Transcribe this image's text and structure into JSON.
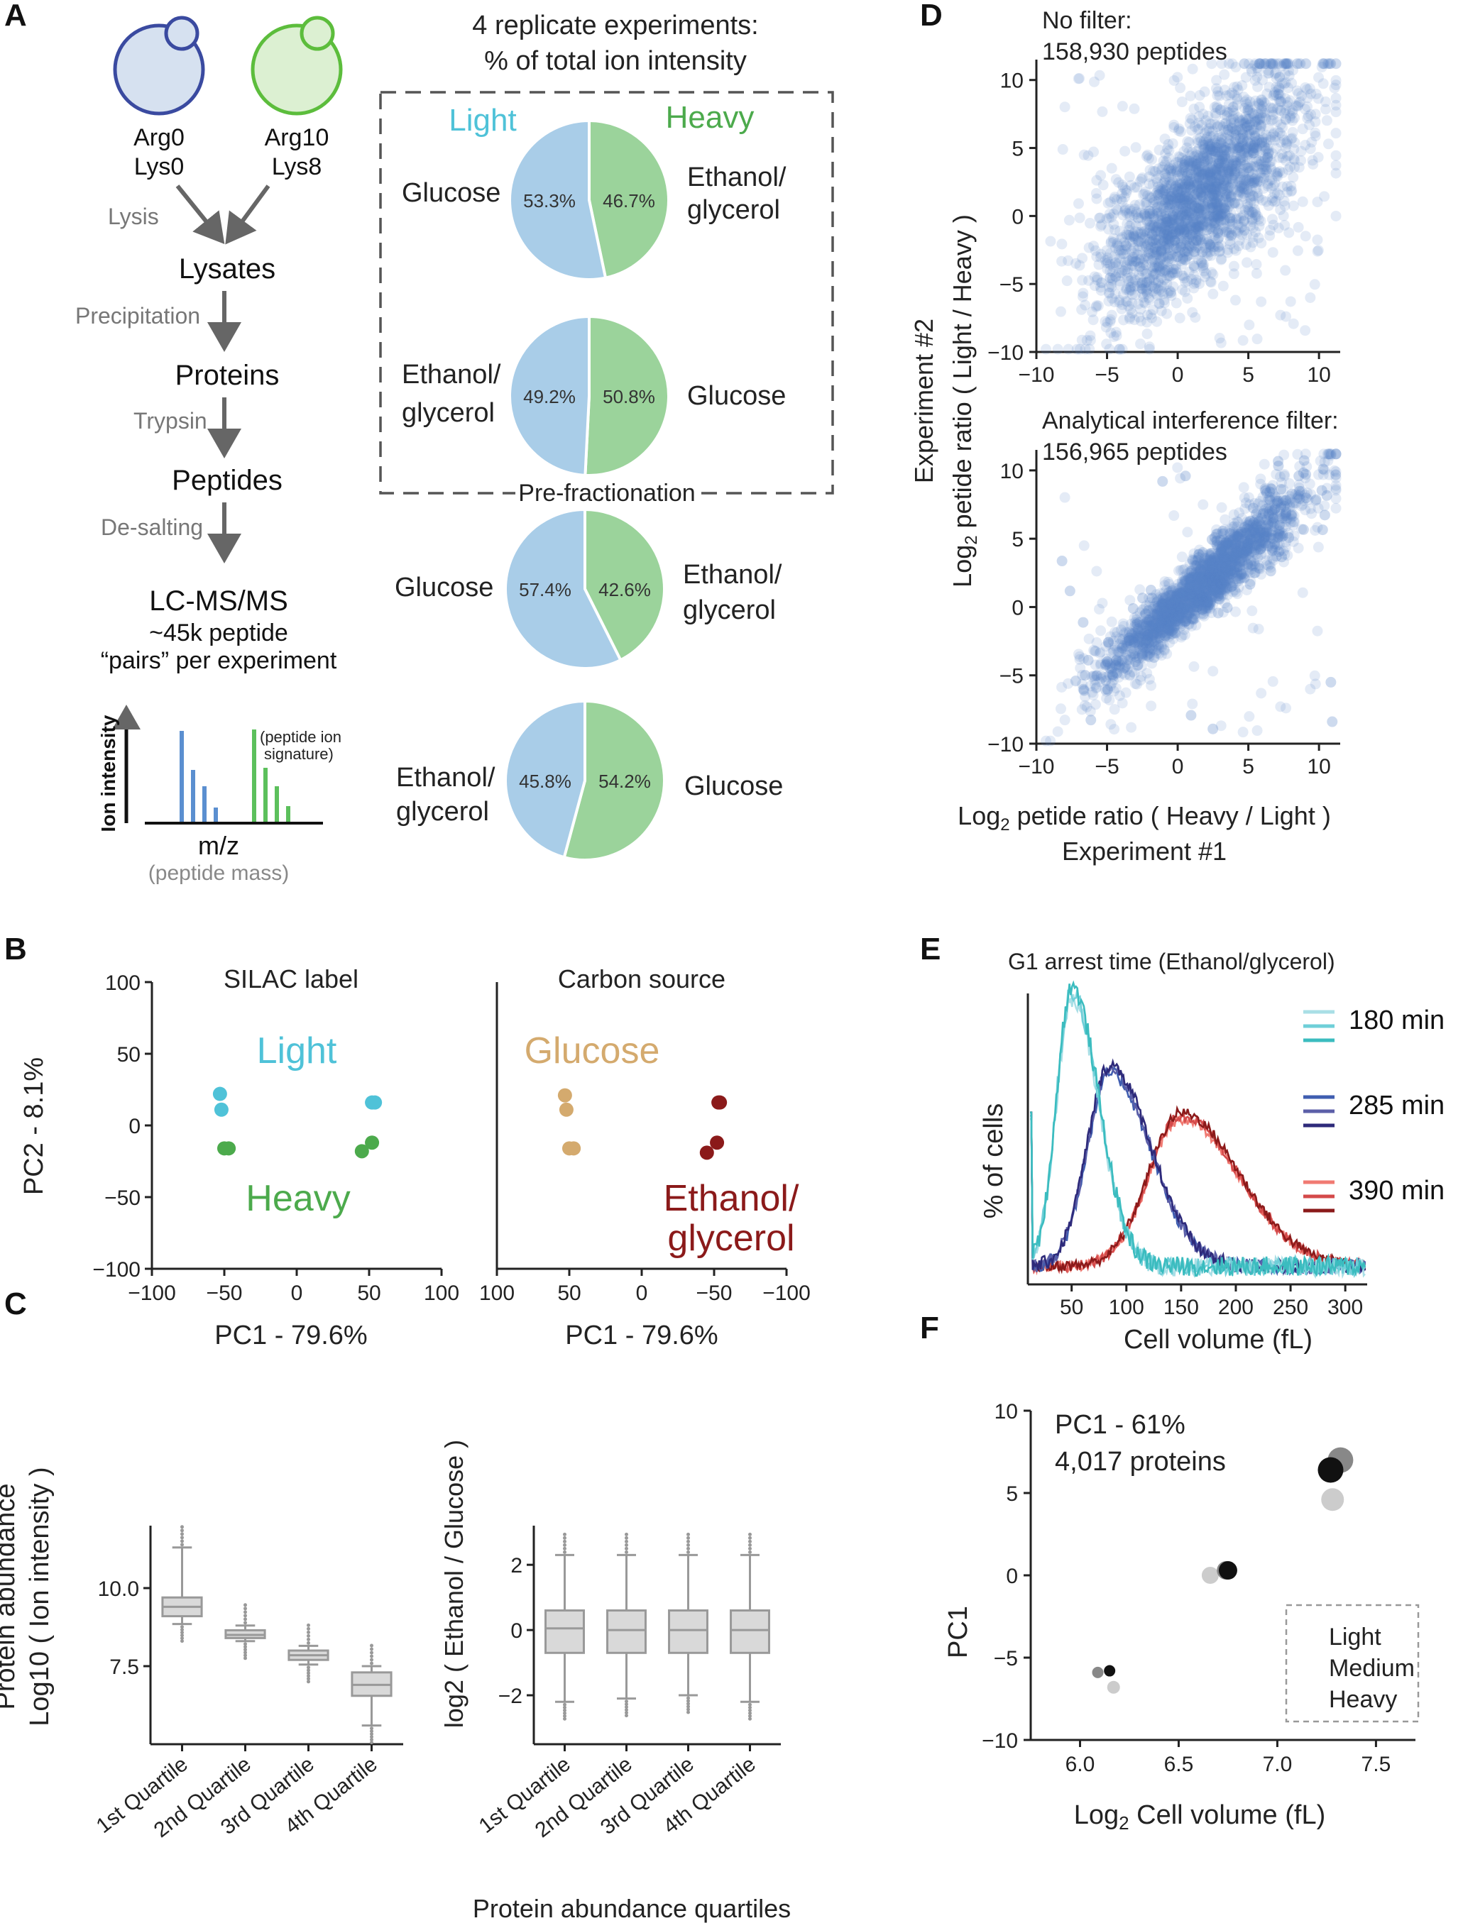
{
  "panel_letters": [
    "A",
    "B",
    "C",
    "D",
    "E",
    "F"
  ],
  "colors": {
    "light_cyan": "#4fc2d8",
    "heavy_green": "#4caa4c",
    "pie_blue": "#a9cde8",
    "pie_green": "#9bd39b",
    "glucose_tan": "#d4aa6e",
    "ethanol_red": "#8b1a1a",
    "scatter_blue": "#5a83c4",
    "box_grey": "#d9d9d9"
  },
  "panelA": {
    "cell_light": {
      "line1": "Arg0",
      "line2": "Lys0"
    },
    "cell_heavy": {
      "line1": "Arg10",
      "line2": "Lys8"
    },
    "steps": [
      {
        "label": "Lysis",
        "product": "Lysates"
      },
      {
        "label": "Precipitation",
        "product": "Proteins"
      },
      {
        "label": "Trypsin",
        "product": "Peptides"
      },
      {
        "label": "De-salting",
        "product": "LC-MS/MS"
      }
    ],
    "ms_sub1": "~45k peptide",
    "ms_sub2": "“pairs” per experiment",
    "spectrum_ylabel": "Ion intensity",
    "spectrum_xlabel": "m/z",
    "spectrum_xsub": "(peptide mass)",
    "spectrum_note1": "(peptide ion",
    "spectrum_note2": "signature)",
    "pie_title1": "4 replicate experiments:",
    "pie_title2": "% of total ion intensity",
    "light_label": "Light",
    "heavy_label": "Heavy",
    "prefrac_label": "Pre-fractionation",
    "glucose": "Glucose",
    "ethanol_line1": "Ethanol/",
    "ethanol_line2": "glycerol",
    "pies": [
      {
        "light_pct": 53.3,
        "heavy_pct": 46.7,
        "light_label": "53.3%",
        "heavy_label": "46.7%",
        "left": "Glucose",
        "right": "Ethanol/glycerol"
      },
      {
        "light_pct": 49.2,
        "heavy_pct": 50.8,
        "light_label": "49.2%",
        "heavy_label": "50.8%",
        "left": "Ethanol/glycerol",
        "right": "Glucose"
      },
      {
        "light_pct": 57.4,
        "heavy_pct": 42.6,
        "light_label": "57.4%",
        "heavy_label": "42.6%",
        "left": "Glucose",
        "right": "Ethanol/glycerol"
      },
      {
        "light_pct": 45.8,
        "heavy_pct": 54.2,
        "light_label": "45.8%",
        "heavy_label": "54.2%",
        "left": "Ethanol/glycerol",
        "right": "Glucose"
      }
    ]
  },
  "chart_data": [
    {
      "id": "B_left",
      "type": "scatter",
      "title": "SILAC label",
      "xlabel": "PC1 - 79.6%",
      "ylabel": "PC2 - 8.1%",
      "xlim": [
        -100,
        100
      ],
      "ylim": [
        -100,
        100
      ],
      "xticks": [
        "−100",
        "−50",
        "0",
        "50",
        "100"
      ],
      "yticks": [
        "100",
        "50",
        "0",
        "−50",
        "−100"
      ],
      "annotations": [
        "Light",
        "Heavy"
      ],
      "series": [
        {
          "name": "Light",
          "points": [
            [
              -53,
              22
            ],
            [
              -52,
              11
            ],
            [
              52,
              16
            ],
            [
              54,
              16
            ]
          ]
        },
        {
          "name": "Heavy",
          "points": [
            [
              -50,
              -16
            ],
            [
              -47,
              -16
            ],
            [
              45,
              -18
            ],
            [
              52,
              -12
            ]
          ]
        }
      ]
    },
    {
      "id": "B_right",
      "type": "scatter",
      "title": "Carbon source",
      "xlabel": "PC1 - 79.6%",
      "xlim": [
        100,
        -100
      ],
      "ylim": [
        -100,
        100
      ],
      "xticks": [
        "100",
        "50",
        "0",
        "−50",
        "−100"
      ],
      "annotations": [
        "Glucose",
        "Ethanol/",
        "glycerol"
      ],
      "series": [
        {
          "name": "Glucose",
          "points": [
            [
              53,
              21
            ],
            [
              52,
              11
            ],
            [
              50,
              -16
            ],
            [
              47,
              -16
            ]
          ]
        },
        {
          "name": "Ethanol/glycerol",
          "points": [
            [
              -53,
              16
            ],
            [
              -54,
              16
            ],
            [
              -52,
              -12
            ],
            [
              -45,
              -19
            ]
          ]
        }
      ]
    },
    {
      "id": "C_left",
      "type": "box",
      "ylabel1": "Protein abundance",
      "ylabel2": "Log10 ( Ion intensity )",
      "categories": [
        "1st Quartile",
        "2nd Quartile",
        "3rd Quartile",
        "4th Quartile"
      ],
      "ylim": [
        5.0,
        12.0
      ],
      "yticks": [
        "10.0",
        "7.5"
      ],
      "boxes": [
        {
          "whislo": 8.85,
          "q1": 9.1,
          "med": 9.4,
          "q3": 9.7,
          "whishi": 11.3
        },
        {
          "whislo": 8.3,
          "q1": 8.4,
          "med": 8.5,
          "q3": 8.65,
          "whishi": 8.8
        },
        {
          "whislo": 7.55,
          "q1": 7.7,
          "med": 7.85,
          "q3": 8.0,
          "whishi": 8.15
        },
        {
          "whislo": 5.6,
          "q1": 6.55,
          "med": 6.9,
          "q3": 7.3,
          "whishi": 7.5
        }
      ]
    },
    {
      "id": "C_right",
      "type": "box",
      "ylabel": "log2 ( Ethanol / Glucose )",
      "xlabel": "Protein abundance quartiles",
      "categories": [
        "1st Quartile",
        "2nd Quartile",
        "3rd Quartile",
        "4th Quartile"
      ],
      "ylim": [
        -3.5,
        3.2
      ],
      "yticks": [
        "2",
        "0",
        "−2"
      ],
      "boxes": [
        {
          "whislo": -2.2,
          "q1": -0.7,
          "med": 0.05,
          "q3": 0.6,
          "whishi": 2.3
        },
        {
          "whislo": -2.1,
          "q1": -0.7,
          "med": 0.0,
          "q3": 0.6,
          "whishi": 2.3
        },
        {
          "whislo": -2.0,
          "q1": -0.7,
          "med": 0.0,
          "q3": 0.6,
          "whishi": 2.3
        },
        {
          "whislo": -2.2,
          "q1": -0.7,
          "med": 0.0,
          "q3": 0.6,
          "whishi": 2.3
        }
      ]
    },
    {
      "id": "D_top",
      "type": "scatter",
      "title": "No filter:",
      "subtitle": "158,930 peptides",
      "xlim": [
        -10,
        11.5
      ],
      "ylim": [
        -10,
        11.5
      ],
      "xticks": [
        "−10",
        "−5",
        "0",
        "5",
        "10"
      ],
      "yticks": [
        "10",
        "5",
        "0",
        "−5",
        "−10"
      ],
      "slope": 0.85,
      "spread": 2.4,
      "n_points": 2400
    },
    {
      "id": "D_bottom",
      "type": "scatter",
      "title": "Analytical interference filter:",
      "subtitle": "156,965 peptides",
      "xlim": [
        -10,
        11.5
      ],
      "ylim": [
        -10,
        11.5
      ],
      "xticks": [
        "−10",
        "−5",
        "0",
        "5",
        "10"
      ],
      "yticks": [
        "10",
        "5",
        "0",
        "−5",
        "−10"
      ],
      "slope": 0.9,
      "spread": 1.0,
      "n_points": 2400,
      "xlabel1": "Log",
      "xlabel1_sub": "2",
      "xlabel1_rest": " petide ratio ( Heavy / Light )",
      "xlabel2": "Experiment #1",
      "ylabel1": "Experiment #2",
      "ylabel2": "Log",
      "ylabel2_sub": "2",
      "ylabel2_rest": " petide ratio ( Light / Heavy )"
    },
    {
      "id": "E",
      "type": "line",
      "title": "G1 arrest  time (Ethanol/glycerol)",
      "xlabel": "Cell volume (fL)",
      "ylabel": "% of cells",
      "xlim": [
        10,
        320
      ],
      "xticks": [
        "50",
        "100",
        "150",
        "200",
        "250",
        "300"
      ],
      "legend": [
        {
          "name": "180 min",
          "colors": [
            "#a9dfe6",
            "#6fcfd8",
            "#3bbcbf"
          ]
        },
        {
          "name": "285 min",
          "colors": [
            "#3f5db0",
            "#5c5fa8",
            "#2e2a7a"
          ]
        },
        {
          "name": "390 min",
          "colors": [
            "#f07a72",
            "#d44a4a",
            "#8b1a1a"
          ]
        }
      ],
      "series": [
        {
          "group": 0,
          "peak": 50,
          "width": 28,
          "height": 1.0
        },
        {
          "group": 1,
          "peak": 85,
          "width": 42,
          "height": 0.72
        },
        {
          "group": 2,
          "peak": 150,
          "width": 60,
          "height": 0.55
        }
      ]
    },
    {
      "id": "F",
      "type": "scatter",
      "xlabel": "Log",
      "xlabel_sub": "2",
      "xlabel_rest": " Cell volume (fL)",
      "ylabel": "PC1",
      "xlim": [
        5.75,
        7.7
      ],
      "ylim": [
        -10,
        10
      ],
      "xticks": [
        "6.0",
        "6.5",
        "7.0",
        "7.5"
      ],
      "yticks": [
        "10",
        "5",
        "0",
        "−5",
        "−10"
      ],
      "annotation1": "PC1 - 61%",
      "annotation2": "4,017 proteins",
      "series": [
        {
          "name": "Light",
          "color": "#cccccc",
          "points": [
            [
              6.17,
              -6.8,
              9
            ],
            [
              6.66,
              0.0,
              12
            ],
            [
              7.28,
              4.6,
              16
            ]
          ]
        },
        {
          "name": "Medium",
          "color": "#888888",
          "points": [
            [
              6.09,
              -5.9,
              8
            ],
            [
              6.74,
              0.3,
              13
            ],
            [
              7.32,
              7.0,
              18
            ]
          ]
        },
        {
          "name": "Heavy",
          "color": "#111111",
          "points": [
            [
              6.15,
              -5.8,
              8
            ],
            [
              6.75,
              0.3,
              13
            ],
            [
              7.27,
              6.4,
              18
            ]
          ]
        }
      ]
    }
  ]
}
